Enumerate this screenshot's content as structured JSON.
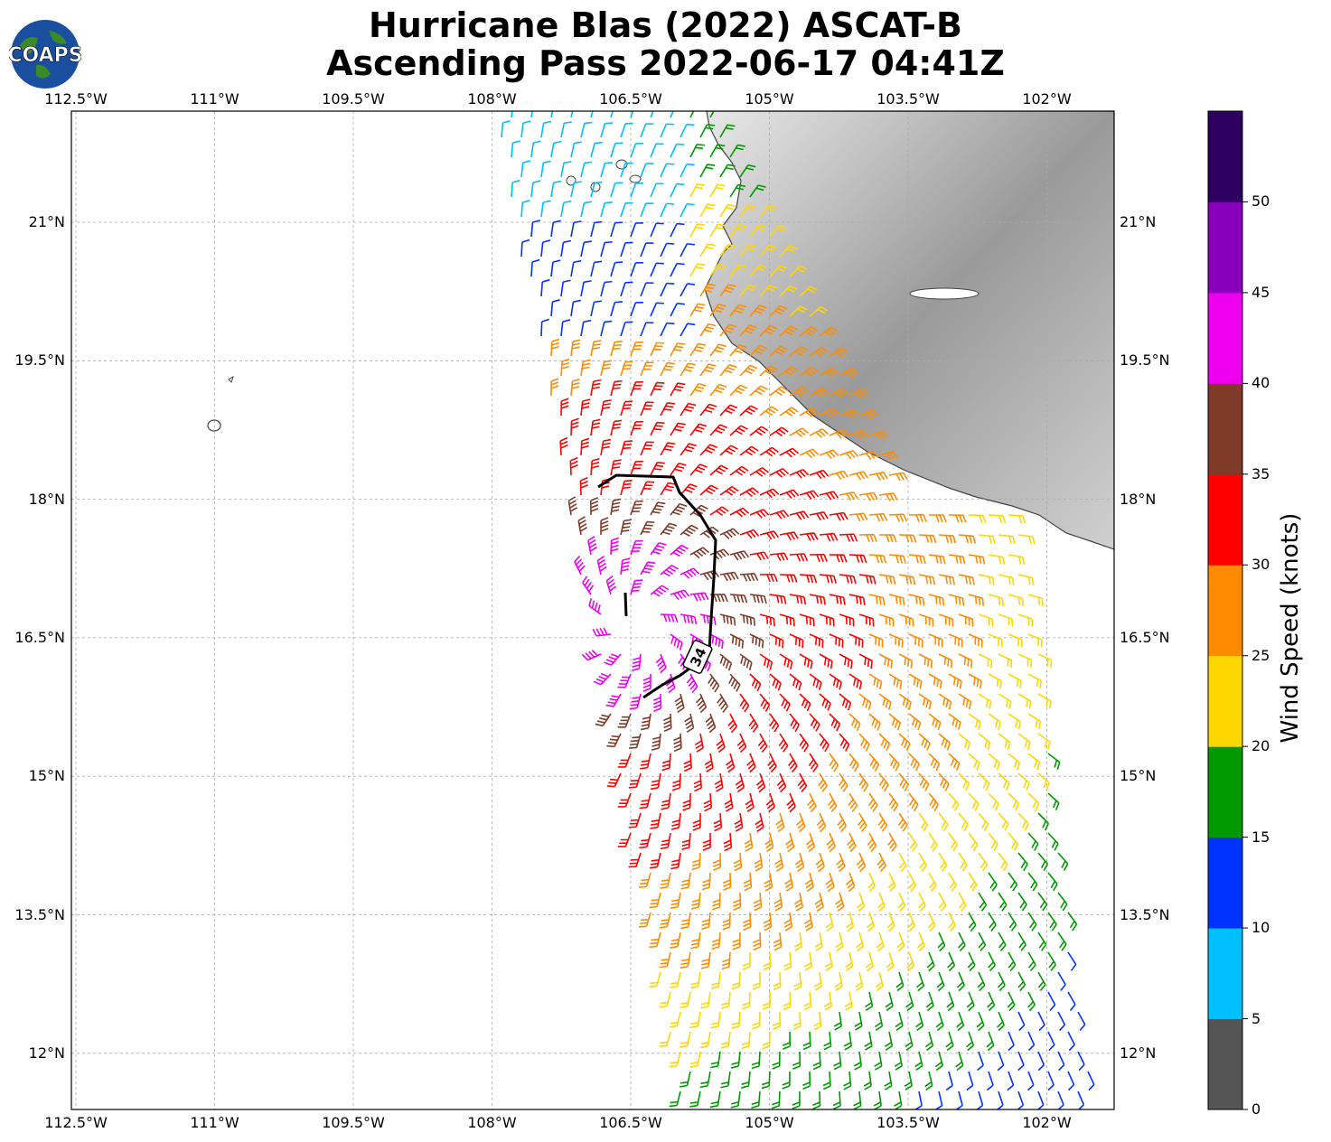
{
  "title_line1": "Hurricane Blas (2022) ASCAT-B",
  "title_line2": "Ascending Pass 2022-06-17 04:41Z",
  "logo_text": "COAPS",
  "lon_labels": [
    "112.5°W",
    "111°W",
    "109.5°W",
    "108°W",
    "106.5°W",
    "105°W",
    "103.5°W",
    "102°W"
  ],
  "lat_labels": [
    "21°N",
    "19.5°N",
    "18°N",
    "16.5°N",
    "15°N",
    "13.5°N",
    "12°N"
  ],
  "contour_label": "34",
  "colorbar": {
    "title": "Wind Speed (knots)",
    "ticks": [
      "0",
      "5",
      "10",
      "15",
      "20",
      "25",
      "30",
      "35",
      "40",
      "45",
      "50"
    ],
    "colors": [
      "#555555",
      "#00bfff",
      "#0033ff",
      "#009900",
      "#ffd700",
      "#ff8c00",
      "#ff0000",
      "#803a28",
      "#ee00ee",
      "#8800bb",
      "#2e0060"
    ]
  },
  "chart_data": {
    "type": "map",
    "projection": "lat-lon",
    "lon_range": [
      -112.5,
      -101.3
    ],
    "lat_range": [
      11.4,
      22.2
    ],
    "grid": true,
    "wind_speed_bins_knots": [
      0,
      5,
      10,
      15,
      20,
      25,
      30,
      35,
      40,
      45,
      50
    ],
    "storm_center": {
      "lon": -106.3,
      "lat": 16.6
    },
    "contours": [
      {
        "label": "34",
        "units": "knots"
      }
    ]
  }
}
